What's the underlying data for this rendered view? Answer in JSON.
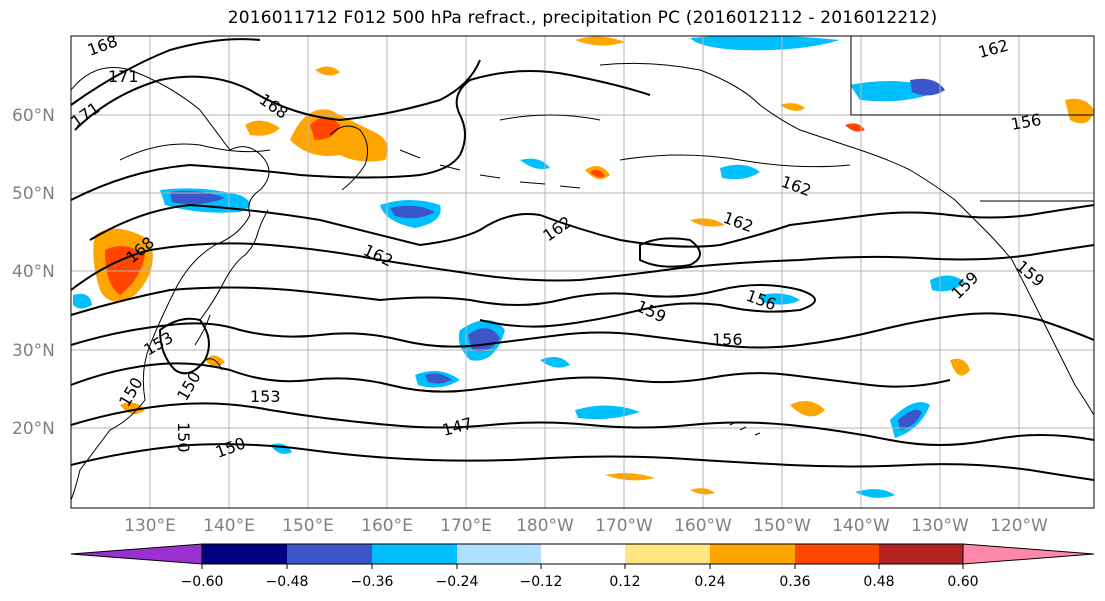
{
  "title": "2016011712 F012 500 hPa refract., precipitation PC (2016012112 - 2016012212)",
  "map": {
    "lat_ticks": [
      "20°N",
      "30°N",
      "40°N",
      "50°N",
      "60°N"
    ],
    "lon_ticks": [
      "130°E",
      "140°E",
      "150°E",
      "160°E",
      "170°E",
      "180°W",
      "170°W",
      "160°W",
      "150°W",
      "140°W",
      "130°W",
      "120°W"
    ],
    "contour_labels": [
      "168",
      "171",
      "171",
      "168",
      "168",
      "162",
      "162",
      "162",
      "162",
      "162",
      "159",
      "159",
      "159",
      "156",
      "156",
      "156",
      "153",
      "153",
      "150",
      "150",
      "150",
      "150",
      "147"
    ]
  },
  "colorbar": {
    "labels": [
      "−0.60",
      "−0.48",
      "−0.36",
      "−0.24",
      "−0.12",
      "0.12",
      "0.24",
      "0.36",
      "0.48",
      "0.60"
    ],
    "colors": [
      "#9b30d0",
      "#000080",
      "#3a56c8",
      "#00bfff",
      "#b0e0ff",
      "#ffffff",
      "#ffe680",
      "#ffa500",
      "#ff4500",
      "#b22222",
      "#ff88aa"
    ]
  },
  "colors": {
    "coast": "#000000",
    "grid": "#b4b4b4",
    "contour": "#000000"
  }
}
